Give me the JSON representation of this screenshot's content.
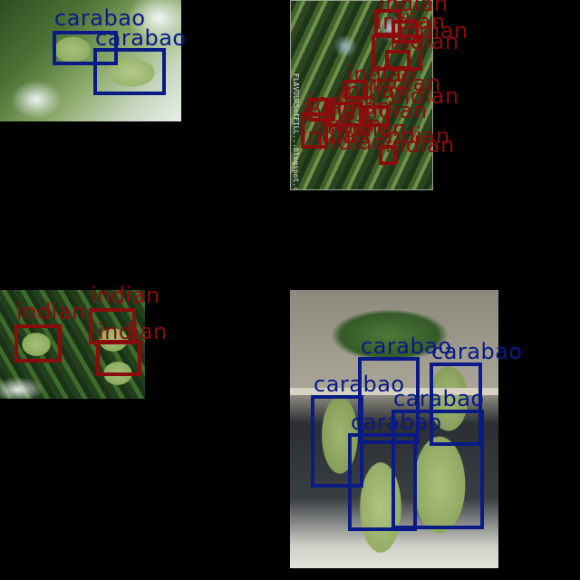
{
  "colors": {
    "carabao": "#0a1a86",
    "indian": "#8a0c0c"
  },
  "tiles": {
    "top_left": {
      "labels": [
        "carabao",
        "carabao"
      ]
    },
    "top_middle": {
      "watermark": "FLAVOURSofFILL...blogspot.com",
      "labels": [
        "indian",
        "indian",
        "indian",
        "indian",
        "indian",
        "indian",
        "indian",
        "indian",
        "indian",
        "indian",
        "indian",
        "indian",
        "indian",
        "indian",
        "indian",
        "indian",
        "indian",
        "indian"
      ]
    },
    "bottom_left": {
      "labels": [
        "indian",
        "indian",
        "indian"
      ]
    },
    "bottom_right": {
      "labels": [
        "carabao",
        "carabao",
        "carabao",
        "carabao",
        "carabao",
        "carabao"
      ]
    }
  }
}
